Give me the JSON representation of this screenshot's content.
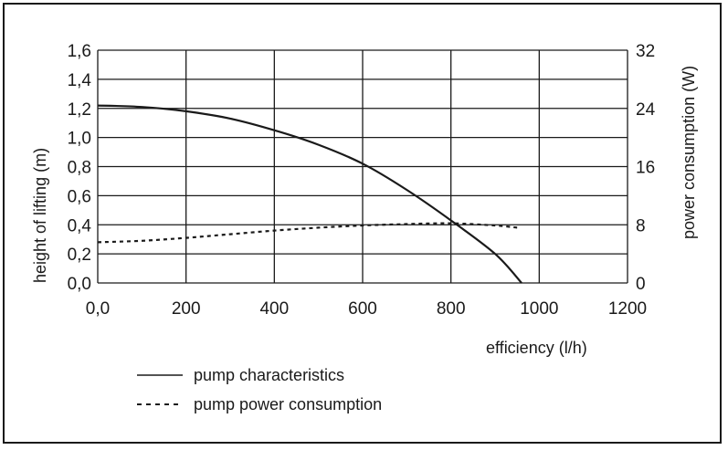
{
  "chart_data": {
    "type": "line",
    "title": "",
    "xlabel": "efficiency (l/h)",
    "ylabel_left": "height of lifting (m)",
    "ylabel_right": "power consumption (W)",
    "xlim": [
      0,
      1200
    ],
    "ylim_left": [
      0,
      1.6
    ],
    "ylim_right": [
      0,
      32
    ],
    "x_ticks": [
      "0,0",
      "200",
      "400",
      "600",
      "800",
      "1000",
      "1200"
    ],
    "y_left_ticks": [
      "0,0",
      "0,2",
      "0,4",
      "0,6",
      "0,8",
      "1,0",
      "1,2",
      "1,4",
      "1,6"
    ],
    "y_right_ticks": [
      "0",
      "8",
      "16",
      "24",
      "32"
    ],
    "grid": true,
    "legend_position": "bottom-left",
    "series": [
      {
        "name": "pump characteristics",
        "axis": "left",
        "style": "solid",
        "x": [
          0,
          100,
          200,
          300,
          400,
          500,
          600,
          700,
          800,
          900,
          960
        ],
        "y": [
          1.22,
          1.21,
          1.18,
          1.13,
          1.05,
          0.95,
          0.82,
          0.64,
          0.43,
          0.2,
          0.0
        ]
      },
      {
        "name": "pump power consumption",
        "axis": "right",
        "style": "dashed",
        "x": [
          0,
          100,
          200,
          300,
          400,
          500,
          600,
          700,
          800,
          900,
          950
        ],
        "y": [
          5.6,
          5.8,
          6.2,
          6.7,
          7.2,
          7.6,
          7.9,
          8.1,
          8.2,
          7.9,
          7.6
        ]
      }
    ]
  }
}
